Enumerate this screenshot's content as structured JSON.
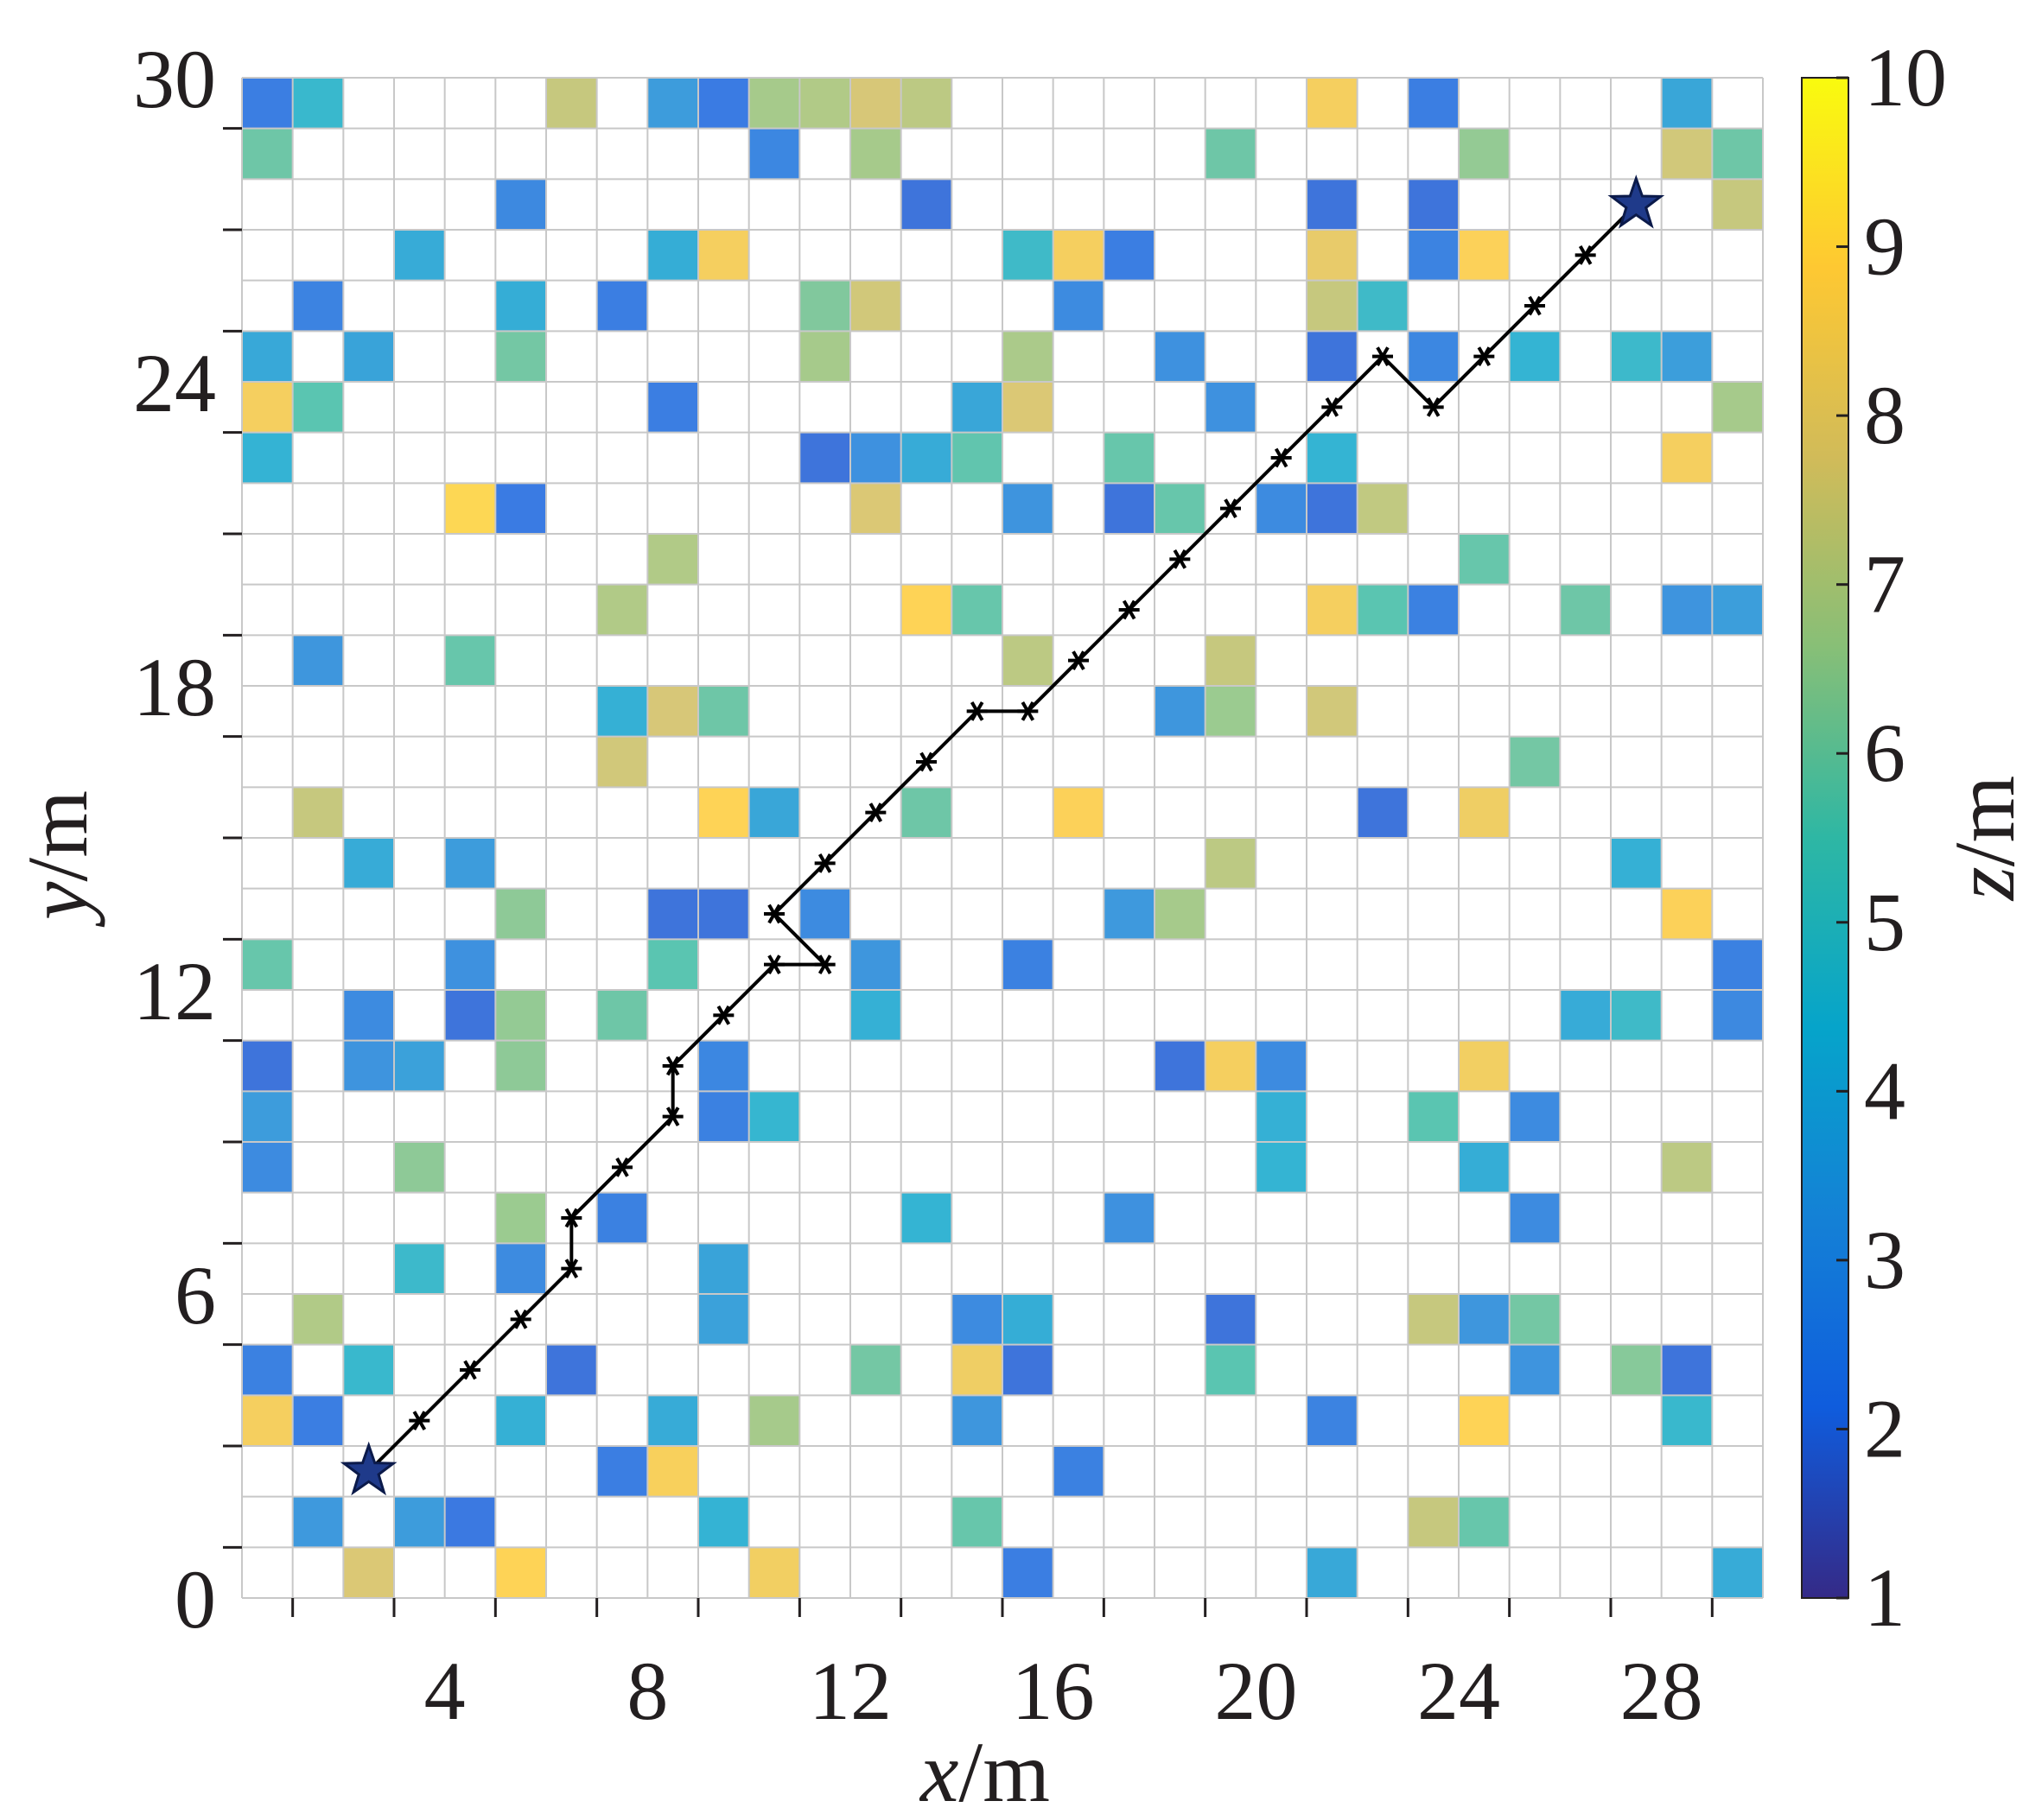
{
  "chart_data": {
    "type": "heatmap",
    "xlabel_var": "x",
    "xlabel_unit": "/m",
    "ylabel_var": "y",
    "ylabel_unit": "/m",
    "colorbar_var": "z",
    "colorbar_unit": "/m",
    "xlim": [
      0,
      30
    ],
    "ylim": [
      0,
      30
    ],
    "x_ticks": [
      4,
      8,
      12,
      16,
      20,
      24,
      28
    ],
    "x_tick_labels": [
      "4",
      "8",
      "12",
      "16",
      "20",
      "24",
      "28"
    ],
    "y_ticks": [
      0,
      6,
      12,
      18,
      24,
      30
    ],
    "y_tick_labels": [
      "0",
      "6",
      "12",
      "18",
      "24",
      "30"
    ],
    "colorbar_range": [
      1,
      10
    ],
    "colorbar_ticks": [
      1,
      2,
      3,
      4,
      5,
      6,
      7,
      8,
      9,
      10
    ],
    "colorbar_tick_labels": [
      "1",
      "2",
      "3",
      "4",
      "5",
      "6",
      "7",
      "8",
      "9",
      "10"
    ],
    "colormap": [
      "#352a87",
      "#0f5cdd",
      "#1481d6",
      "#06a4ca",
      "#2eb7a4",
      "#87bf77",
      "#d1bb59",
      "#fec832",
      "#f9fb0e"
    ],
    "grid": true,
    "cell_size": 1,
    "obstacles": [
      {
        "x": 0,
        "y": 29,
        "z": 2.3
      },
      {
        "x": 1,
        "y": 29,
        "z": 4.6
      },
      {
        "x": 6,
        "y": 29,
        "z": 7.4
      },
      {
        "x": 8,
        "y": 29,
        "z": 3.4
      },
      {
        "x": 9,
        "y": 29,
        "z": 2.2
      },
      {
        "x": 10,
        "y": 29,
        "z": 6.8
      },
      {
        "x": 11,
        "y": 29,
        "z": 7.0
      },
      {
        "x": 12,
        "y": 29,
        "z": 7.7
      },
      {
        "x": 13,
        "y": 29,
        "z": 7.2
      },
      {
        "x": 21,
        "y": 29,
        "z": 8.6
      },
      {
        "x": 23,
        "y": 29,
        "z": 2.3
      },
      {
        "x": 28,
        "y": 29,
        "z": 3.8
      },
      {
        "x": 0,
        "y": 28,
        "z": 5.9
      },
      {
        "x": 10,
        "y": 28,
        "z": 2.6
      },
      {
        "x": 12,
        "y": 28,
        "z": 6.8
      },
      {
        "x": 19,
        "y": 28,
        "z": 5.9
      },
      {
        "x": 24,
        "y": 28,
        "z": 6.5
      },
      {
        "x": 28,
        "y": 28,
        "z": 7.6
      },
      {
        "x": 29,
        "y": 28,
        "z": 5.9
      },
      {
        "x": 5,
        "y": 27,
        "z": 2.7
      },
      {
        "x": 13,
        "y": 27,
        "z": 2.0
      },
      {
        "x": 21,
        "y": 27,
        "z": 2.0
      },
      {
        "x": 23,
        "y": 27,
        "z": 2.0
      },
      {
        "x": 29,
        "y": 27,
        "z": 7.4
      },
      {
        "x": 3,
        "y": 26,
        "z": 4.0
      },
      {
        "x": 8,
        "y": 26,
        "z": 4.1
      },
      {
        "x": 9,
        "y": 26,
        "z": 8.6
      },
      {
        "x": 15,
        "y": 26,
        "z": 4.8
      },
      {
        "x": 16,
        "y": 26,
        "z": 8.6
      },
      {
        "x": 17,
        "y": 26,
        "z": 2.3
      },
      {
        "x": 21,
        "y": 26,
        "z": 8.2
      },
      {
        "x": 23,
        "y": 26,
        "z": 2.5
      },
      {
        "x": 24,
        "y": 26,
        "z": 8.8
      },
      {
        "x": 1,
        "y": 25,
        "z": 2.5
      },
      {
        "x": 5,
        "y": 25,
        "z": 4.1
      },
      {
        "x": 7,
        "y": 25,
        "z": 2.3
      },
      {
        "x": 11,
        "y": 25,
        "z": 6.2
      },
      {
        "x": 12,
        "y": 25,
        "z": 7.6
      },
      {
        "x": 16,
        "y": 25,
        "z": 2.8
      },
      {
        "x": 21,
        "y": 25,
        "z": 7.4
      },
      {
        "x": 22,
        "y": 25,
        "z": 4.8
      },
      {
        "x": 0,
        "y": 24,
        "z": 3.9
      },
      {
        "x": 2,
        "y": 24,
        "z": 3.7
      },
      {
        "x": 5,
        "y": 24,
        "z": 6.0
      },
      {
        "x": 11,
        "y": 24,
        "z": 6.8
      },
      {
        "x": 15,
        "y": 24,
        "z": 6.9
      },
      {
        "x": 18,
        "y": 24,
        "z": 3.0
      },
      {
        "x": 21,
        "y": 24,
        "z": 2.0
      },
      {
        "x": 23,
        "y": 24,
        "z": 2.6
      },
      {
        "x": 25,
        "y": 24,
        "z": 4.4
      },
      {
        "x": 27,
        "y": 24,
        "z": 4.7
      },
      {
        "x": 28,
        "y": 24,
        "z": 3.5
      },
      {
        "x": 0,
        "y": 23,
        "z": 8.6
      },
      {
        "x": 1,
        "y": 23,
        "z": 5.6
      },
      {
        "x": 8,
        "y": 23,
        "z": 2.3
      },
      {
        "x": 14,
        "y": 23,
        "z": 3.8
      },
      {
        "x": 15,
        "y": 23,
        "z": 7.8
      },
      {
        "x": 19,
        "y": 23,
        "z": 3.0
      },
      {
        "x": 29,
        "y": 23,
        "z": 6.8
      },
      {
        "x": 0,
        "y": 22,
        "z": 4.3
      },
      {
        "x": 11,
        "y": 22,
        "z": 2.0
      },
      {
        "x": 12,
        "y": 22,
        "z": 3.0
      },
      {
        "x": 13,
        "y": 22,
        "z": 4.0
      },
      {
        "x": 14,
        "y": 22,
        "z": 5.7
      },
      {
        "x": 17,
        "y": 22,
        "z": 5.8
      },
      {
        "x": 21,
        "y": 22,
        "z": 4.4
      },
      {
        "x": 28,
        "y": 22,
        "z": 8.6
      },
      {
        "x": 4,
        "y": 21,
        "z": 9.0
      },
      {
        "x": 5,
        "y": 21,
        "z": 2.2
      },
      {
        "x": 12,
        "y": 21,
        "z": 7.8
      },
      {
        "x": 15,
        "y": 21,
        "z": 3.1
      },
      {
        "x": 17,
        "y": 21,
        "z": 2.0
      },
      {
        "x": 18,
        "y": 21,
        "z": 5.8
      },
      {
        "x": 20,
        "y": 21,
        "z": 2.8
      },
      {
        "x": 21,
        "y": 21,
        "z": 2.0
      },
      {
        "x": 22,
        "y": 21,
        "z": 7.3
      },
      {
        "x": 8,
        "y": 20,
        "z": 7.0
      },
      {
        "x": 24,
        "y": 20,
        "z": 5.8
      },
      {
        "x": 7,
        "y": 19,
        "z": 7.0
      },
      {
        "x": 13,
        "y": 19,
        "z": 8.9
      },
      {
        "x": 14,
        "y": 19,
        "z": 5.8
      },
      {
        "x": 21,
        "y": 19,
        "z": 8.6
      },
      {
        "x": 22,
        "y": 19,
        "z": 5.6
      },
      {
        "x": 23,
        "y": 19,
        "z": 2.4
      },
      {
        "x": 26,
        "y": 19,
        "z": 5.9
      },
      {
        "x": 28,
        "y": 19,
        "z": 3.1
      },
      {
        "x": 29,
        "y": 19,
        "z": 3.5
      },
      {
        "x": 1,
        "y": 18,
        "z": 3.2
      },
      {
        "x": 4,
        "y": 18,
        "z": 5.8
      },
      {
        "x": 15,
        "y": 18,
        "z": 7.2
      },
      {
        "x": 19,
        "y": 18,
        "z": 7.4
      },
      {
        "x": 7,
        "y": 17,
        "z": 4.2
      },
      {
        "x": 8,
        "y": 17,
        "z": 7.7
      },
      {
        "x": 9,
        "y": 17,
        "z": 5.9
      },
      {
        "x": 18,
        "y": 17,
        "z": 3.2
      },
      {
        "x": 19,
        "y": 17,
        "z": 6.6
      },
      {
        "x": 21,
        "y": 17,
        "z": 7.6
      },
      {
        "x": 7,
        "y": 16,
        "z": 7.6
      },
      {
        "x": 25,
        "y": 16,
        "z": 6.0
      },
      {
        "x": 1,
        "y": 15,
        "z": 7.4
      },
      {
        "x": 9,
        "y": 15,
        "z": 8.9
      },
      {
        "x": 10,
        "y": 15,
        "z": 3.8
      },
      {
        "x": 13,
        "y": 15,
        "z": 5.9
      },
      {
        "x": 16,
        "y": 15,
        "z": 8.8
      },
      {
        "x": 22,
        "y": 15,
        "z": 2.0
      },
      {
        "x": 24,
        "y": 15,
        "z": 8.4
      },
      {
        "x": 2,
        "y": 14,
        "z": 4.0
      },
      {
        "x": 4,
        "y": 14,
        "z": 3.4
      },
      {
        "x": 19,
        "y": 14,
        "z": 7.2
      },
      {
        "x": 27,
        "y": 14,
        "z": 4.2
      },
      {
        "x": 5,
        "y": 13,
        "z": 6.4
      },
      {
        "x": 8,
        "y": 13,
        "z": 2.0
      },
      {
        "x": 9,
        "y": 13,
        "z": 2.0
      },
      {
        "x": 11,
        "y": 13,
        "z": 2.8
      },
      {
        "x": 17,
        "y": 13,
        "z": 3.3
      },
      {
        "x": 18,
        "y": 13,
        "z": 6.8
      },
      {
        "x": 28,
        "y": 13,
        "z": 8.8
      },
      {
        "x": 0,
        "y": 12,
        "z": 5.8
      },
      {
        "x": 4,
        "y": 12,
        "z": 3.0
      },
      {
        "x": 8,
        "y": 12,
        "z": 5.6
      },
      {
        "x": 12,
        "y": 12,
        "z": 3.2
      },
      {
        "x": 15,
        "y": 12,
        "z": 2.4
      },
      {
        "x": 29,
        "y": 12,
        "z": 2.4
      },
      {
        "x": 2,
        "y": 11,
        "z": 2.8
      },
      {
        "x": 4,
        "y": 11,
        "z": 2.0
      },
      {
        "x": 5,
        "y": 11,
        "z": 6.5
      },
      {
        "x": 7,
        "y": 11,
        "z": 5.9
      },
      {
        "x": 12,
        "y": 11,
        "z": 4.2
      },
      {
        "x": 26,
        "y": 11,
        "z": 4.0
      },
      {
        "x": 27,
        "y": 11,
        "z": 4.8
      },
      {
        "x": 29,
        "y": 11,
        "z": 2.7
      },
      {
        "x": 0,
        "y": 10,
        "z": 2.0
      },
      {
        "x": 2,
        "y": 10,
        "z": 3.1
      },
      {
        "x": 3,
        "y": 10,
        "z": 3.6
      },
      {
        "x": 5,
        "y": 10,
        "z": 6.4
      },
      {
        "x": 9,
        "y": 10,
        "z": 2.6
      },
      {
        "x": 18,
        "y": 10,
        "z": 2.0
      },
      {
        "x": 19,
        "y": 10,
        "z": 8.6
      },
      {
        "x": 20,
        "y": 10,
        "z": 2.8
      },
      {
        "x": 24,
        "y": 10,
        "z": 8.5
      },
      {
        "x": 0,
        "y": 9,
        "z": 3.4
      },
      {
        "x": 9,
        "y": 9,
        "z": 2.4
      },
      {
        "x": 10,
        "y": 9,
        "z": 4.5
      },
      {
        "x": 20,
        "y": 9,
        "z": 4.2
      },
      {
        "x": 23,
        "y": 9,
        "z": 5.6
      },
      {
        "x": 25,
        "y": 9,
        "z": 2.8
      },
      {
        "x": 0,
        "y": 8,
        "z": 2.8
      },
      {
        "x": 3,
        "y": 8,
        "z": 6.4
      },
      {
        "x": 20,
        "y": 8,
        "z": 4.4
      },
      {
        "x": 24,
        "y": 8,
        "z": 4.1
      },
      {
        "x": 28,
        "y": 8,
        "z": 7.2
      },
      {
        "x": 5,
        "y": 7,
        "z": 6.6
      },
      {
        "x": 7,
        "y": 7,
        "z": 2.4
      },
      {
        "x": 13,
        "y": 7,
        "z": 4.4
      },
      {
        "x": 17,
        "y": 7,
        "z": 3.0
      },
      {
        "x": 25,
        "y": 7,
        "z": 2.8
      },
      {
        "x": 3,
        "y": 6,
        "z": 4.7
      },
      {
        "x": 5,
        "y": 6,
        "z": 2.8
      },
      {
        "x": 9,
        "y": 6,
        "z": 3.7
      },
      {
        "x": 1,
        "y": 5,
        "z": 7.0
      },
      {
        "x": 9,
        "y": 5,
        "z": 3.6
      },
      {
        "x": 14,
        "y": 5,
        "z": 2.8
      },
      {
        "x": 15,
        "y": 5,
        "z": 4.1
      },
      {
        "x": 19,
        "y": 5,
        "z": 2.0
      },
      {
        "x": 23,
        "y": 5,
        "z": 7.4
      },
      {
        "x": 24,
        "y": 5,
        "z": 3.2
      },
      {
        "x": 25,
        "y": 5,
        "z": 6.0
      },
      {
        "x": 0,
        "y": 4,
        "z": 2.4
      },
      {
        "x": 2,
        "y": 4,
        "z": 4.6
      },
      {
        "x": 6,
        "y": 4,
        "z": 2.0
      },
      {
        "x": 12,
        "y": 4,
        "z": 6.0
      },
      {
        "x": 14,
        "y": 4,
        "z": 8.4
      },
      {
        "x": 15,
        "y": 4,
        "z": 2.0
      },
      {
        "x": 19,
        "y": 4,
        "z": 5.6
      },
      {
        "x": 25,
        "y": 4,
        "z": 3.1
      },
      {
        "x": 27,
        "y": 4,
        "z": 6.3
      },
      {
        "x": 28,
        "y": 4,
        "z": 2.0
      },
      {
        "x": 0,
        "y": 3,
        "z": 8.6
      },
      {
        "x": 1,
        "y": 3,
        "z": 2.3
      },
      {
        "x": 5,
        "y": 3,
        "z": 4.2
      },
      {
        "x": 8,
        "y": 3,
        "z": 4.0
      },
      {
        "x": 10,
        "y": 3,
        "z": 6.8
      },
      {
        "x": 14,
        "y": 3,
        "z": 3.2
      },
      {
        "x": 21,
        "y": 3,
        "z": 2.5
      },
      {
        "x": 24,
        "y": 3,
        "z": 8.9
      },
      {
        "x": 28,
        "y": 3,
        "z": 4.6
      },
      {
        "x": 7,
        "y": 2,
        "z": 2.3
      },
      {
        "x": 8,
        "y": 2,
        "z": 8.7
      },
      {
        "x": 16,
        "y": 2,
        "z": 2.4
      },
      {
        "x": 1,
        "y": 1,
        "z": 3.3
      },
      {
        "x": 3,
        "y": 1,
        "z": 3.4
      },
      {
        "x": 4,
        "y": 1,
        "z": 2.1
      },
      {
        "x": 9,
        "y": 1,
        "z": 4.3
      },
      {
        "x": 14,
        "y": 1,
        "z": 5.8
      },
      {
        "x": 23,
        "y": 1,
        "z": 7.4
      },
      {
        "x": 24,
        "y": 1,
        "z": 5.8
      },
      {
        "x": 2,
        "y": 0,
        "z": 7.8
      },
      {
        "x": 5,
        "y": 0,
        "z": 8.9
      },
      {
        "x": 10,
        "y": 0,
        "z": 8.5
      },
      {
        "x": 15,
        "y": 0,
        "z": 2.3
      },
      {
        "x": 21,
        "y": 0,
        "z": 3.9
      },
      {
        "x": 29,
        "y": 0,
        "z": 4.0
      }
    ],
    "path": [
      [
        2.5,
        2.5
      ],
      [
        3.5,
        3.5
      ],
      [
        4.5,
        4.5
      ],
      [
        5.5,
        5.5
      ],
      [
        6.5,
        6.5
      ],
      [
        6.5,
        7.5
      ],
      [
        7.5,
        8.5
      ],
      [
        8.5,
        9.5
      ],
      [
        8.5,
        10.5
      ],
      [
        9.5,
        11.5
      ],
      [
        10.5,
        12.5
      ],
      [
        11.5,
        12.5
      ],
      [
        10.5,
        13.5
      ],
      [
        11.5,
        14.5
      ],
      [
        12.5,
        15.5
      ],
      [
        13.5,
        16.5
      ],
      [
        14.5,
        17.5
      ],
      [
        15.5,
        17.5
      ],
      [
        16.5,
        18.5
      ],
      [
        17.5,
        19.5
      ],
      [
        18.5,
        20.5
      ],
      [
        19.5,
        21.5
      ],
      [
        20.5,
        22.5
      ],
      [
        21.5,
        23.5
      ],
      [
        22.5,
        24.5
      ],
      [
        23.5,
        23.5
      ],
      [
        24.5,
        24.5
      ],
      [
        25.5,
        25.5
      ],
      [
        26.5,
        26.5
      ],
      [
        27.5,
        27.5
      ]
    ],
    "start": [
      2.5,
      2.5
    ],
    "goal": [
      27.5,
      27.5
    ],
    "path_color": "#000000",
    "marker_color": "#1f3a8a"
  }
}
